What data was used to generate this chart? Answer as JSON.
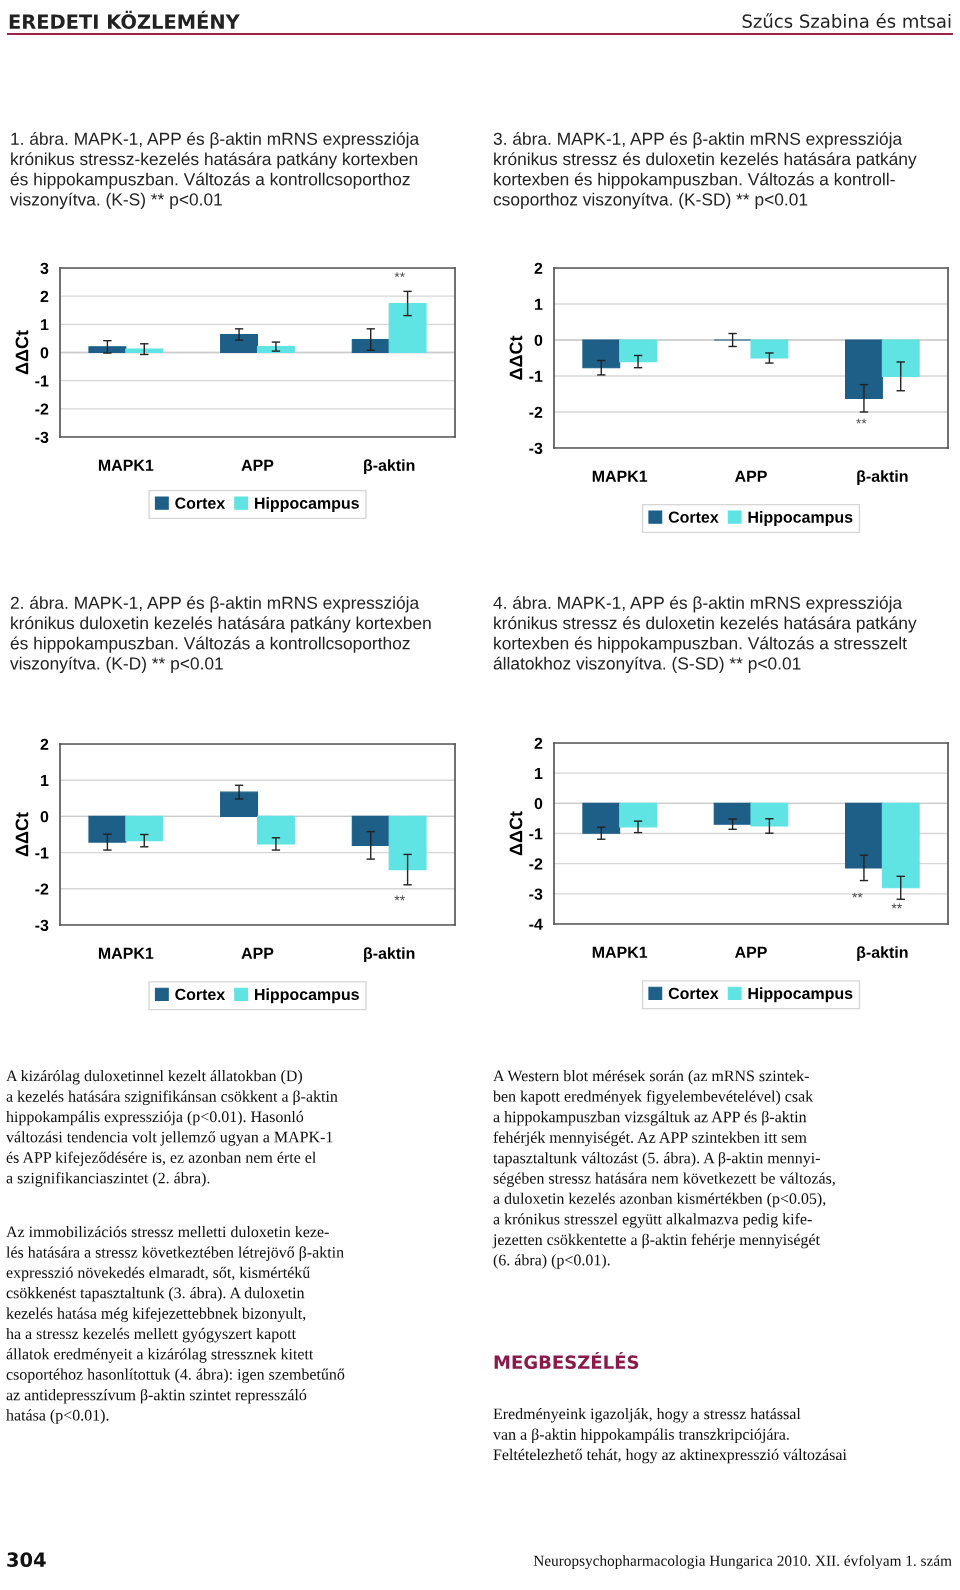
{
  "chart_data": [
    {
      "type": "bar",
      "title": "1. ábra. MAPK-1, APP és β-aktin mRNS expressziója\nkrónikus stressz-kezelés hatására patkány kortexben\nés hippokampuszban. Változás a kontrollcsoporthoz\nviszonyítva. (K-S) ** p<0.01",
      "ylabel": "ΔΔCt",
      "categories": [
        "MAPK1",
        "APP",
        "β-aktin"
      ],
      "series": [
        {
          "name": "Cortex",
          "color": "#1d5f87",
          "values": [
            0.2,
            0.64,
            0.46
          ],
          "errors": [
            0.22,
            0.2,
            0.38
          ]
        },
        {
          "name": "Hippocampus",
          "color": "#5fe3e3",
          "values": [
            0.12,
            0.21,
            1.74
          ],
          "errors": [
            0.19,
            0.16,
            0.43
          ]
        }
      ],
      "ylim": [
        -3,
        3
      ],
      "yticks": [
        -3,
        -2,
        -1,
        0,
        1,
        2,
        3
      ],
      "grid": "y",
      "legend": "bottom",
      "annotations": [
        "**"
      ]
    },
    {
      "type": "bar",
      "title": "3. ábra. MAPK-1, APP és β-aktin mRNS expressziója\nkrónikus stressz és duloxetin kezelés hatására patkány\nkortexben és hippokampuszban. Változás a kontroll-\ncsoporthoz viszonyítva. (K-SD) ** p<0.01",
      "ylabel": "ΔΔCt",
      "categories": [
        "MAPK1",
        "APP",
        "β-aktin"
      ],
      "series": [
        {
          "name": "Cortex",
          "color": "#1d5f87",
          "values": [
            -0.77,
            0,
            -1.62
          ],
          "errors": [
            0.2,
            0.18,
            0.38
          ]
        },
        {
          "name": "Hippocampus",
          "color": "#5fe3e3",
          "values": [
            -0.6,
            -0.5,
            -1.01
          ],
          "errors": [
            0.17,
            0.14,
            0.4
          ]
        }
      ],
      "ylim": [
        -3,
        2
      ],
      "yticks": [
        -3,
        -2,
        -1,
        0,
        1,
        2
      ],
      "grid": "y",
      "legend": "bottom",
      "annotations": [
        "**"
      ]
    },
    {
      "type": "bar",
      "title": "2. ábra. MAPK-1, APP és β-aktin mRNS expressziója\nkrónikus duloxetin kezelés hatására patkány kortexben\nés hippokampuszban. Változás a kontrollcsoporthoz\nviszonyítva. (K-D) ** p<0.01",
      "ylabel": "ΔΔCt",
      "categories": [
        "MAPK1",
        "APP",
        "β-aktin"
      ],
      "series": [
        {
          "name": "Cortex",
          "color": "#1d5f87",
          "values": [
            -0.71,
            0.67,
            -0.8
          ],
          "errors": [
            0.22,
            0.19,
            0.38
          ]
        },
        {
          "name": "Hippocampus",
          "color": "#5fe3e3",
          "values": [
            -0.67,
            -0.76,
            -1.47
          ],
          "errors": [
            0.17,
            0.17,
            0.42
          ]
        }
      ],
      "ylim": [
        -3,
        2
      ],
      "yticks": [
        -3,
        -2,
        -1,
        0,
        1,
        2
      ],
      "grid": "y",
      "legend": "bottom",
      "annotations": [
        "**"
      ]
    },
    {
      "type": "bar",
      "title": "4. ábra. MAPK-1, APP és β-aktin mRNS expressziója\nkrónikus stressz és duloxetin kezelés hatására patkány\nkortexben és hippokampuszban. Változás a stresszelt\nállatokhoz viszonyítva. (S-SD) ** p<0.01",
      "ylabel": "ΔΔCt",
      "categories": [
        "MAPK1",
        "APP",
        "β-aktin"
      ],
      "series": [
        {
          "name": "Cortex",
          "color": "#1d5f87",
          "values": [
            -0.99,
            -0.69,
            -2.14
          ],
          "errors": [
            0.2,
            0.17,
            0.42
          ]
        },
        {
          "name": "Hippocampus",
          "color": "#5fe3e3",
          "values": [
            -0.78,
            -0.75,
            -2.8
          ],
          "errors": [
            0.19,
            0.24,
            0.38
          ]
        }
      ],
      "ylim": [
        -4,
        2
      ],
      "yticks": [
        -4,
        -3,
        -2,
        -1,
        0,
        1,
        2
      ],
      "grid": "y",
      "legend": "bottom",
      "annotations": [
        "**",
        "**"
      ]
    },
    {
      "type": "other",
      "annotations": [
        "EREDETI KÖZLEMÉNY",
        "Szűcs Szabina és mtsai",
        "A kizárólag duloxetinnel kezelt állatokban (D)\na kezelés hatására szignifikánsan csökkent a β-aktin\nhippokampális expressziója (p<0.01). Hasonló\nváltozási tendencia volt jellemző ugyan a MAPK-1\nés APP kifejeződésére is, ez azonban nem érte el\na szignifikanciaszintet (2. ábra).",
        "Az immobilizációs stressz melletti duloxetin keze-\nlés hatására a stressz következtében létrejövő β-aktin\nexpresszió növekedés elmaradt, sőt, kismértékű\ncsökkenést tapasztaltunk (3. ábra). A duloxetin\nkezelés hatása még kifejezettebbnek bizonyult,\nha a stressz kezelés mellett gyógyszert kapott\nállatok eredményeit a kizárólag stressznek kitett\ncsoportéhoz hasonlítottuk (4. ábra): igen szembetűnő\naz antidepresszívum β-aktin szintet represszáló\nhatása (p<0.01).",
        "A Western blot mérések során (az mRNS szintek-\nben kapott eredmények figyelembevételével) csak\na hippokampuszban vizsgáltuk az APP és β-aktin\nfehérjék mennyiségét. Az APP szintekben itt sem\ntapasztaltunk változást (5. ábra). A β-aktin mennyi-\nségében stressz hatására nem következett be változás,\na duloxetin kezelés azonban kismértékben (p<0.05),\na krónikus stresszel együtt alkalmazva pedig kife-\njezetten csökkentette a β-aktin fehérje mennyiségét\n(6. ábra) (p<0.01).",
        "MEGBESZÉLÉS",
        "Eredményeink igazolják, hogy a stressz hatással\nvan a β-aktin hippokampális transzkripciójára.\nFeltételezhető tehát, hogy az aktinexpresszió változásai",
        "304",
        "Neuropsychopharmacologia Hungarica 2010. XII. évfolyam 1. szám"
      ]
    }
  ]
}
